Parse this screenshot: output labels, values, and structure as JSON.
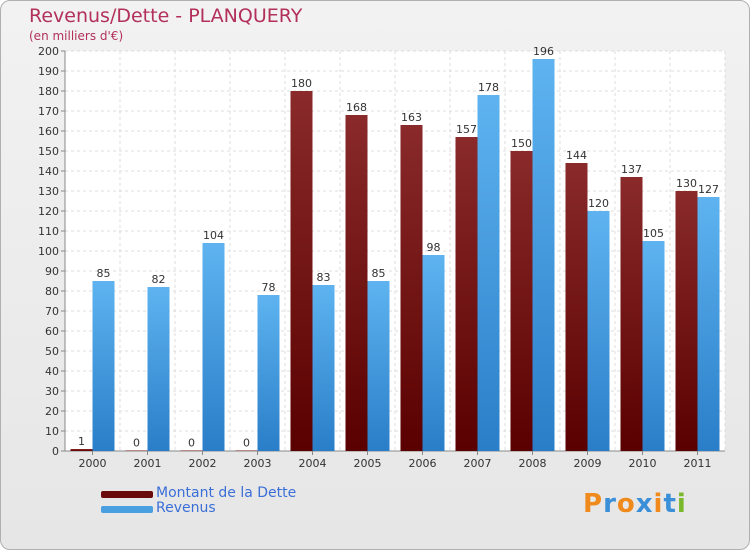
{
  "chart_data": {
    "type": "bar",
    "title": "Revenus/Dette - PLANQUERY",
    "subtitle": "(en milliers d'€)",
    "xlabel": "",
    "ylabel": "",
    "ylim": [
      0,
      200
    ],
    "ytick_step": 10,
    "grid": true,
    "legend_position": "bottom-left",
    "categories": [
      "2000",
      "2001",
      "2002",
      "2003",
      "2004",
      "2005",
      "2006",
      "2007",
      "2008",
      "2009",
      "2010",
      "2011"
    ],
    "series": [
      {
        "name": "Montant de la Dette",
        "color": "#7a1010",
        "values": [
          1,
          0,
          0,
          0,
          180,
          168,
          163,
          157,
          150,
          144,
          137,
          130
        ]
      },
      {
        "name": "Revenus",
        "color": "#4a9fe0",
        "values": [
          85,
          82,
          104,
          78,
          83,
          85,
          98,
          178,
          196,
          120,
          105,
          127
        ]
      }
    ]
  },
  "logo": {
    "text": "Proxiti",
    "colors": [
      "#f08a1c",
      "#3a8fd8",
      "#f08a1c",
      "#3a8fd8",
      "#f08a1c",
      "#3a8fd8",
      "#7ab82c"
    ]
  }
}
